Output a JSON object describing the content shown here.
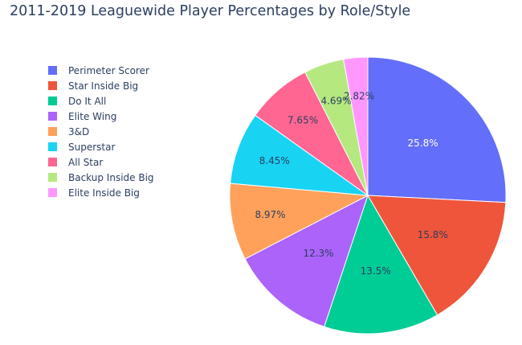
{
  "chart_data": {
    "type": "pie",
    "title": "2011-2019 Leaguewide Player Percentages by Role/Style",
    "sort": "descending",
    "direction": "clockwise",
    "start": "top",
    "legend_position": "top-left",
    "slices": [
      {
        "label": "Perimeter Scorer",
        "value": 25.8,
        "text": "25.8%",
        "color": "#636efa",
        "text_color": "#ffffff"
      },
      {
        "label": "Star Inside Big",
        "value": 15.8,
        "text": "15.8%",
        "color": "#EF553B",
        "text_color": "#2a3f5f"
      },
      {
        "label": "Do It All",
        "value": 13.5,
        "text": "13.5%",
        "color": "#00cc96",
        "text_color": "#2a3f5f"
      },
      {
        "label": "Elite Wing",
        "value": 12.3,
        "text": "12.3%",
        "color": "#ab63fa",
        "text_color": "#2a3f5f"
      },
      {
        "label": "3&D",
        "value": 8.97,
        "text": "8.97%",
        "color": "#FFA15A",
        "text_color": "#2a3f5f"
      },
      {
        "label": "Superstar",
        "value": 8.45,
        "text": "8.45%",
        "color": "#19d3f3",
        "text_color": "#2a3f5f"
      },
      {
        "label": "All Star",
        "value": 7.65,
        "text": "7.65%",
        "color": "#FF6692",
        "text_color": "#2a3f5f"
      },
      {
        "label": "Backup Inside Big",
        "value": 4.69,
        "text": "4.69%",
        "color": "#B6E880",
        "text_color": "#2a3f5f"
      },
      {
        "label": "Elite Inside Big",
        "value": 2.82,
        "text": "2.82%",
        "color": "#FF97FF",
        "text_color": "#2a3f5f"
      }
    ]
  }
}
